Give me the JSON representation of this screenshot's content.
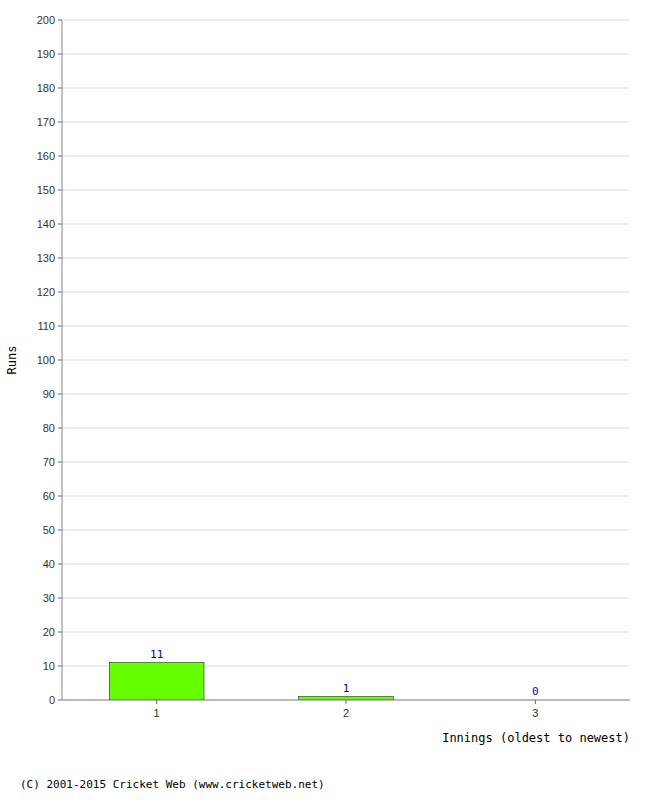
{
  "chart_data": {
    "type": "bar",
    "categories": [
      1,
      2,
      3
    ],
    "values": [
      11,
      1,
      0
    ],
    "color": "#66ff00",
    "ylabel": "Runs",
    "xlabel": "Innings (oldest to newest)",
    "annotations": [
      "(C) 2001-2015 Cricket Web (www.cricketweb.net)"
    ],
    "ylim": [
      0,
      200
    ],
    "yticks": [
      0,
      10,
      20,
      30,
      40,
      50,
      60,
      70,
      80,
      90,
      100,
      110,
      120,
      130,
      140,
      150,
      160,
      170,
      180,
      190,
      200
    ],
    "grid": true,
    "data_labels": true
  }
}
